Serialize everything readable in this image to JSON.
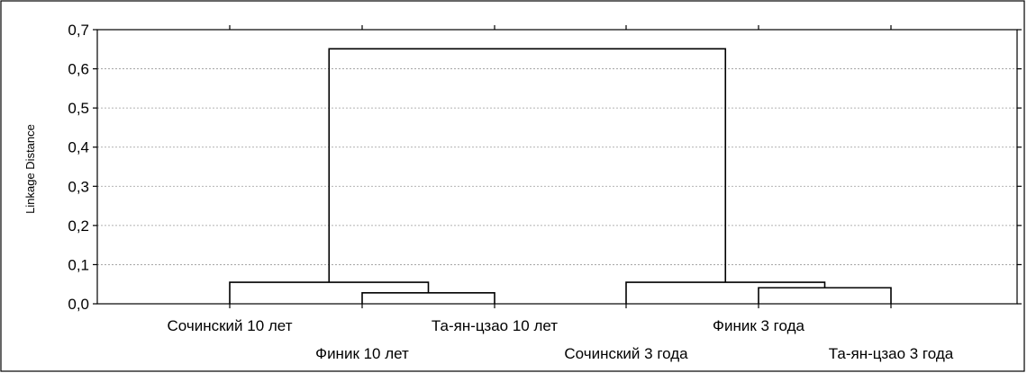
{
  "chart_data": {
    "type": "dendrogram",
    "title": "",
    "xlabel": "",
    "ylabel": "Linkage Distance",
    "ylim": [
      0,
      0.7
    ],
    "yticks": [
      0,
      0.1,
      0.2,
      0.3,
      0.4,
      0.5,
      0.6,
      0.7
    ],
    "ytick_labels": [
      "0,0",
      "0,1",
      "0,2",
      "0,3",
      "0,4",
      "0,5",
      "0,6",
      "0,7"
    ],
    "grid": true,
    "leaves": [
      "Сочинский 10 лет",
      "Финик 10 лет",
      "Та-ян-цзао 10 лет",
      "Сочинский 3 года",
      "Финик 3 года",
      "Та-ян-цзао 3 года"
    ],
    "merges": [
      {
        "left": [
          "Финик 10 лет"
        ],
        "right": [
          "Та-ян-цзао 10 лет"
        ],
        "distance": 0.028
      },
      {
        "left": [
          "Сочинский 10 лет"
        ],
        "right": [
          "Финик 10 лет",
          "Та-ян-цзао 10 лет"
        ],
        "distance": 0.055
      },
      {
        "left": [
          "Финик 3 года"
        ],
        "right": [
          "Та-ян-цзао 3 года"
        ],
        "distance": 0.041
      },
      {
        "left": [
          "Сочинский 3 года"
        ],
        "right": [
          "Финик 3 года",
          "Та-ян-цзао 3 года"
        ],
        "distance": 0.055
      },
      {
        "left": [
          "Сочинский 10 лет",
          "Финик 10 лет",
          "Та-ян-цзао 10 лет"
        ],
        "right": [
          "Сочинский 3 года",
          "Финик 3 года",
          "Та-ян-цзао 3 года"
        ],
        "distance": 0.651
      }
    ]
  }
}
